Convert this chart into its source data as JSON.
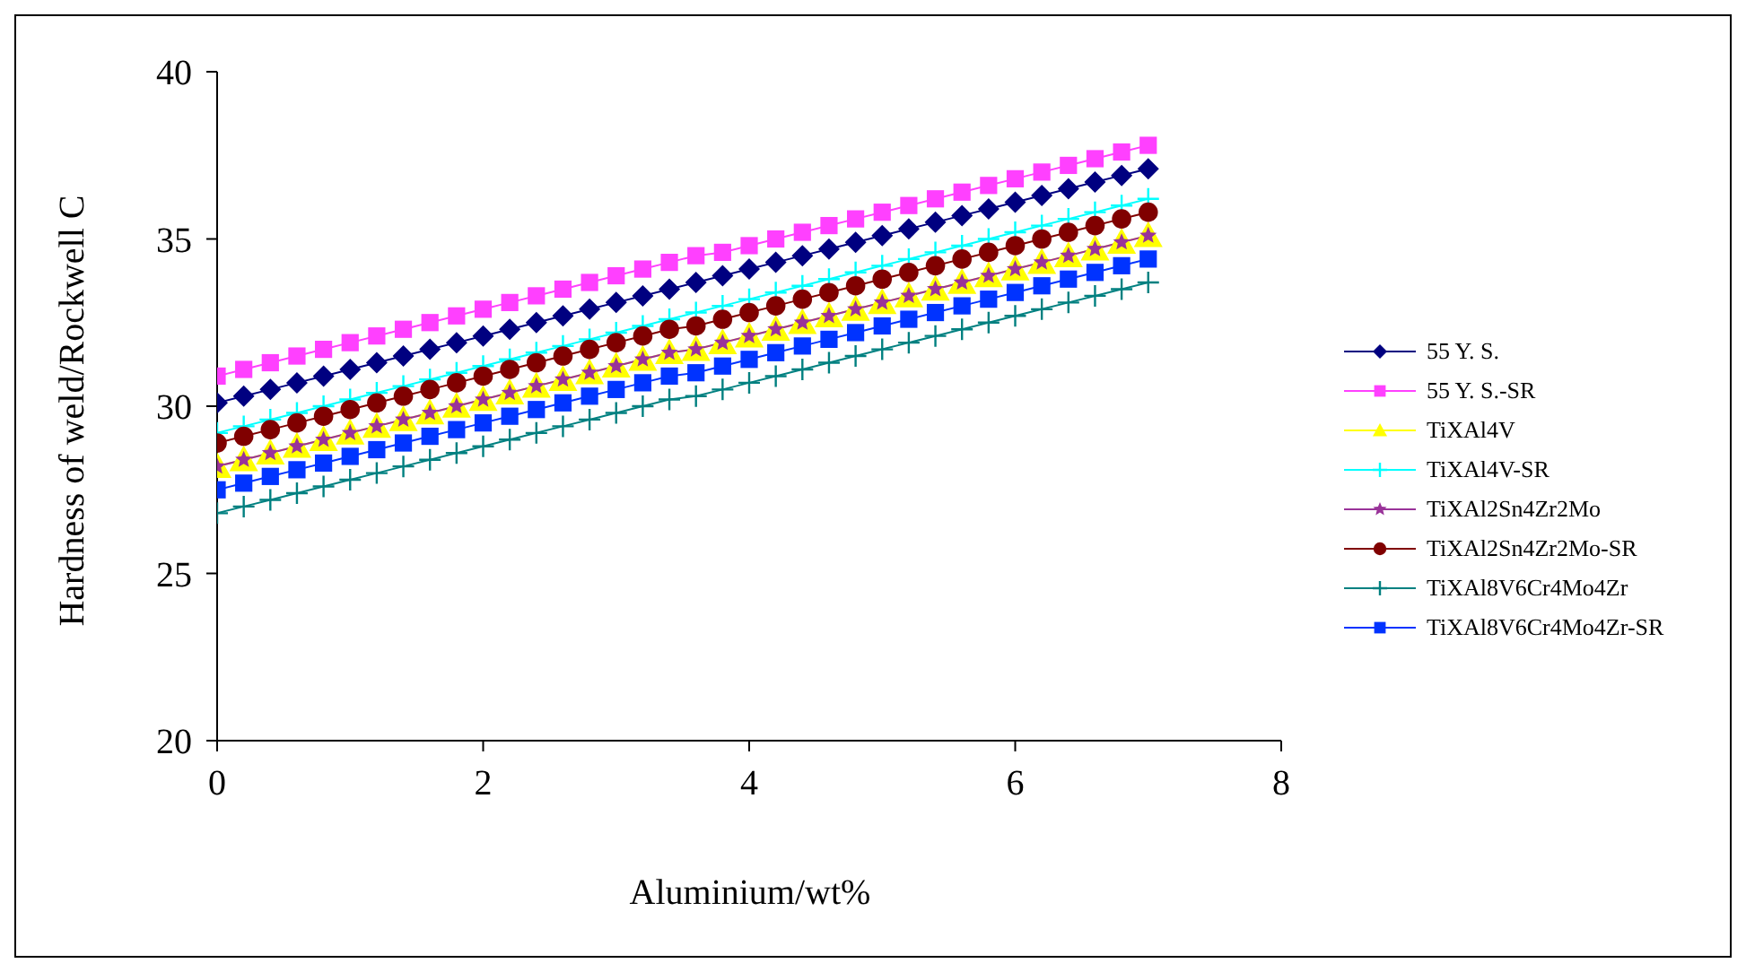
{
  "chart_data": {
    "type": "line",
    "xlabel": "Aluminium/wt%",
    "ylabel": "Hardness of weld/Rockwell C",
    "x": [
      0,
      0.2,
      0.4,
      0.6,
      0.8,
      1,
      1.2,
      1.4,
      1.6,
      1.8,
      2,
      2.2,
      2.4,
      2.6,
      2.8,
      3,
      3.2,
      3.4,
      3.6,
      3.8,
      4,
      4.2,
      4.4,
      4.6,
      4.8,
      5,
      5.2,
      5.4,
      5.6,
      5.8,
      6,
      6.2,
      6.4,
      6.6,
      6.8,
      7
    ],
    "xlim": [
      0,
      8
    ],
    "xticks": [
      0,
      2,
      4,
      6,
      8
    ],
    "ylim": [
      20,
      40
    ],
    "yticks": [
      20,
      25,
      30,
      35,
      40
    ],
    "legend": "right",
    "series": [
      {
        "name": "55 Y. S.",
        "color": "#000080",
        "marker": "diamond",
        "values": [
          30.1,
          30.3,
          30.5,
          30.7,
          30.9,
          31.1,
          31.3,
          31.5,
          31.7,
          31.9,
          32.1,
          32.3,
          32.5,
          32.7,
          32.9,
          33.1,
          33.3,
          33.5,
          33.7,
          33.9,
          34.1,
          34.3,
          34.5,
          34.7,
          34.9,
          35.1,
          35.3,
          35.5,
          35.7,
          35.9,
          36.1,
          36.3,
          36.5,
          36.7,
          36.9,
          37.1
        ]
      },
      {
        "name": "55 Y. S.-SR",
        "color": "#ff40ff",
        "marker": "square",
        "values": [
          30.9,
          31.1,
          31.3,
          31.5,
          31.7,
          31.9,
          32.1,
          32.3,
          32.5,
          32.7,
          32.9,
          33.1,
          33.3,
          33.5,
          33.7,
          33.9,
          34.1,
          34.3,
          34.5,
          34.6,
          34.8,
          35.0,
          35.2,
          35.4,
          35.6,
          35.8,
          36.0,
          36.2,
          36.4,
          36.6,
          36.8,
          37.0,
          37.2,
          37.4,
          37.6,
          37.8
        ]
      },
      {
        "name": "TiXAl4V",
        "color": "#ffff00",
        "marker": "triangle",
        "values": [
          28.2,
          28.4,
          28.6,
          28.8,
          29.0,
          29.2,
          29.4,
          29.6,
          29.8,
          30.0,
          30.2,
          30.4,
          30.6,
          30.8,
          31.0,
          31.2,
          31.4,
          31.6,
          31.7,
          31.9,
          32.1,
          32.3,
          32.5,
          32.7,
          32.9,
          33.1,
          33.3,
          33.5,
          33.7,
          33.9,
          34.1,
          34.3,
          34.5,
          34.7,
          34.9,
          35.1
        ]
      },
      {
        "name": "TiXAl4V-SR",
        "color": "#00ffff",
        "marker": "cross",
        "values": [
          29.2,
          29.4,
          29.6,
          29.8,
          30.0,
          30.2,
          30.4,
          30.6,
          30.8,
          31.0,
          31.2,
          31.4,
          31.6,
          31.8,
          32.0,
          32.2,
          32.4,
          32.6,
          32.8,
          33.0,
          33.2,
          33.4,
          33.6,
          33.8,
          34.0,
          34.2,
          34.4,
          34.6,
          34.8,
          35.0,
          35.2,
          35.4,
          35.6,
          35.8,
          36.0,
          36.2
        ]
      },
      {
        "name": "TiXAl2Sn4Zr2Mo",
        "color": "#993399",
        "marker": "star",
        "values": [
          28.2,
          28.4,
          28.6,
          28.8,
          29.0,
          29.2,
          29.4,
          29.6,
          29.8,
          30.0,
          30.2,
          30.4,
          30.6,
          30.8,
          31.0,
          31.2,
          31.4,
          31.6,
          31.7,
          31.9,
          32.1,
          32.3,
          32.5,
          32.7,
          32.9,
          33.1,
          33.3,
          33.5,
          33.7,
          33.9,
          34.1,
          34.3,
          34.5,
          34.7,
          34.9,
          35.1
        ]
      },
      {
        "name": "TiXAl2Sn4Zr2Mo-SR",
        "color": "#800000",
        "marker": "circle",
        "values": [
          28.9,
          29.1,
          29.3,
          29.5,
          29.7,
          29.9,
          30.1,
          30.3,
          30.5,
          30.7,
          30.9,
          31.1,
          31.3,
          31.5,
          31.7,
          31.9,
          32.1,
          32.3,
          32.4,
          32.6,
          32.8,
          33.0,
          33.2,
          33.4,
          33.6,
          33.8,
          34.0,
          34.2,
          34.4,
          34.6,
          34.8,
          35.0,
          35.2,
          35.4,
          35.6,
          35.8
        ]
      },
      {
        "name": "TiXAl8V6Cr4Mo4Zr",
        "color": "#008080",
        "marker": "cross",
        "values": [
          26.8,
          27.0,
          27.2,
          27.4,
          27.6,
          27.8,
          28.0,
          28.2,
          28.4,
          28.6,
          28.8,
          29.0,
          29.2,
          29.4,
          29.6,
          29.8,
          30.0,
          30.2,
          30.3,
          30.5,
          30.7,
          30.9,
          31.1,
          31.3,
          31.5,
          31.7,
          31.9,
          32.1,
          32.3,
          32.5,
          32.7,
          32.9,
          33.1,
          33.3,
          33.5,
          33.7
        ]
      },
      {
        "name": "TiXAl8V6Cr4Mo4Zr-SR",
        "color": "#0033ff",
        "marker": "square",
        "values": [
          27.5,
          27.7,
          27.9,
          28.1,
          28.3,
          28.5,
          28.7,
          28.9,
          29.1,
          29.3,
          29.5,
          29.7,
          29.9,
          30.1,
          30.3,
          30.5,
          30.7,
          30.9,
          31.0,
          31.2,
          31.4,
          31.6,
          31.8,
          32.0,
          32.2,
          32.4,
          32.6,
          32.8,
          33.0,
          33.2,
          33.4,
          33.6,
          33.8,
          34.0,
          34.2,
          34.4
        ]
      }
    ]
  }
}
